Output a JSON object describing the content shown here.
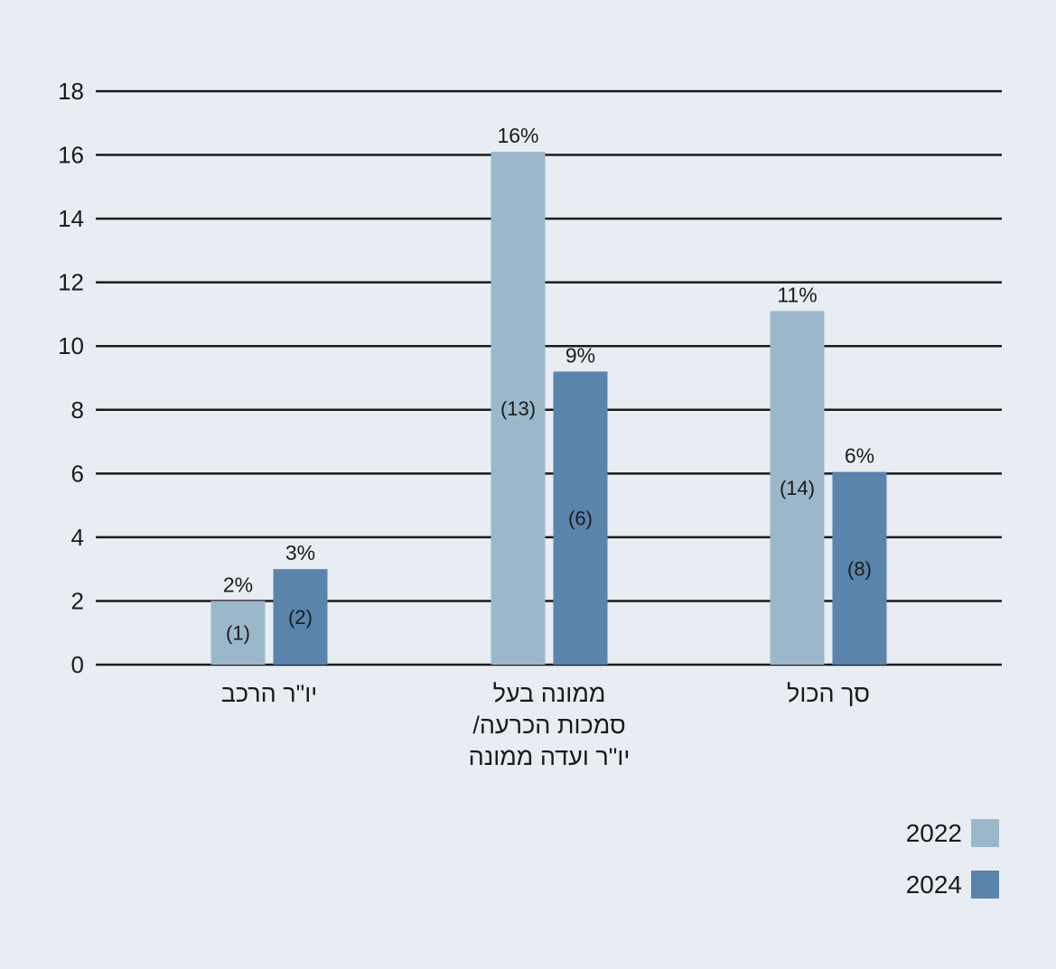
{
  "chart_data": {
    "type": "bar",
    "categories": [
      [
        "יו\"ר הרכב"
      ],
      [
        "ממונה בעל",
        "סמכות הכרעה/",
        "יו\"ר ועדה ממונה"
      ],
      [
        "סך הכול"
      ]
    ],
    "series": [
      {
        "name": "2022",
        "color": "#9bb8cb",
        "values": [
          2,
          16.1,
          11.1
        ],
        "pct_labels": [
          "2%",
          "16%",
          "11%"
        ],
        "count_labels": [
          "(1)",
          "(13)",
          "(14)"
        ]
      },
      {
        "name": "2024",
        "color": "#5a84ab",
        "values": [
          3,
          9.2,
          6.05
        ],
        "pct_labels": [
          "3%",
          "9%",
          "6%"
        ],
        "count_labels": [
          "(2)",
          "(6)",
          "(8)"
        ]
      }
    ],
    "yticks": [
      0,
      2,
      4,
      6,
      8,
      10,
      12,
      14,
      16,
      18
    ],
    "ylim": [
      0,
      18
    ],
    "grid": true,
    "legend": "bottom-right",
    "title": "",
    "xlabel": "",
    "ylabel": ""
  }
}
